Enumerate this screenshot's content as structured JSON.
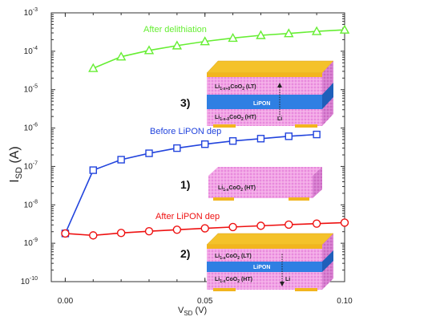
{
  "chart_data": {
    "type": "line",
    "xlabel_main": "V",
    "xlabel_sub": "SD",
    "xlabel_unit": " (V)",
    "ylabel_main": "I",
    "ylabel_sub": "SD",
    "ylabel_unit": " (A)",
    "xlim": [
      -0.005,
      0.1
    ],
    "ylim_log10": [
      -10,
      -3
    ],
    "yscale": "log",
    "x_ticks": [
      0.0,
      0.05,
      0.1
    ],
    "x_tick_labels": [
      "0.00",
      "0.05",
      "0.10"
    ],
    "y_tick_mantissa": "10",
    "y_tick_exponents": [
      "-10",
      "-9",
      "-8",
      "-7",
      "-6",
      "-5",
      "-4",
      "-3"
    ],
    "series": [
      {
        "name": "After delithiation",
        "color": "#66ee33",
        "marker": "triangle",
        "x": [
          0.01,
          0.02,
          0.03,
          0.04,
          0.05,
          0.06,
          0.07,
          0.08,
          0.09,
          0.1
        ],
        "y": [
          3.6e-05,
          7.2e-05,
          0.000105,
          0.00014,
          0.00018,
          0.00022,
          0.00026,
          0.00029,
          0.00033,
          0.00036
        ]
      },
      {
        "name": "Before LiPON dep",
        "color": "#2244dd",
        "marker": "square",
        "x": [
          0.0,
          0.01,
          0.02,
          0.03,
          0.04,
          0.05,
          0.06,
          0.07,
          0.08,
          0.09
        ],
        "y": [
          1.8e-09,
          8e-08,
          1.5e-07,
          2.2e-07,
          3e-07,
          3.8e-07,
          4.6e-07,
          5.3e-07,
          6.1e-07,
          6.8e-07
        ]
      },
      {
        "name": "After LiPON dep",
        "color": "#ee1111",
        "marker": "circle",
        "x": [
          0.0,
          0.01,
          0.02,
          0.03,
          0.04,
          0.05,
          0.06,
          0.07,
          0.08,
          0.09,
          0.1
        ],
        "y": [
          1.8e-09,
          1.6e-09,
          1.85e-09,
          2.05e-09,
          2.25e-09,
          2.45e-09,
          2.65e-09,
          2.85e-09,
          3.05e-09,
          3.25e-09,
          3.45e-09
        ]
      }
    ],
    "insets": [
      {
        "number": "3)",
        "layers": [
          {
            "text": "Li",
            "sub": "1-x+δ",
            "text2": "CoO",
            "sub2": "2",
            "tail": " (LT)"
          },
          {
            "text": "LiPON"
          },
          {
            "text": "Li",
            "sub": "1-x-δ",
            "text2": "CoO",
            "sub2": "2",
            "tail": " (HT)"
          }
        ],
        "arrow_label": "Li"
      },
      {
        "number": "1)",
        "layers": [
          {
            "text": "Li",
            "sub": "1-x",
            "text2": "CoO",
            "sub2": "2",
            "tail": " (HT)"
          }
        ]
      },
      {
        "number": "2)",
        "layers": [
          {
            "text": "Li",
            "sub": "1-x",
            "text2": "CoO",
            "sub2": "2",
            "tail": " (LT)"
          },
          {
            "text": "LiPON"
          },
          {
            "text": "Li",
            "sub": "1-x",
            "text2": "CoO",
            "sub2": "2",
            "tail": " (HT)"
          }
        ],
        "arrow_label": "Li"
      }
    ]
  }
}
